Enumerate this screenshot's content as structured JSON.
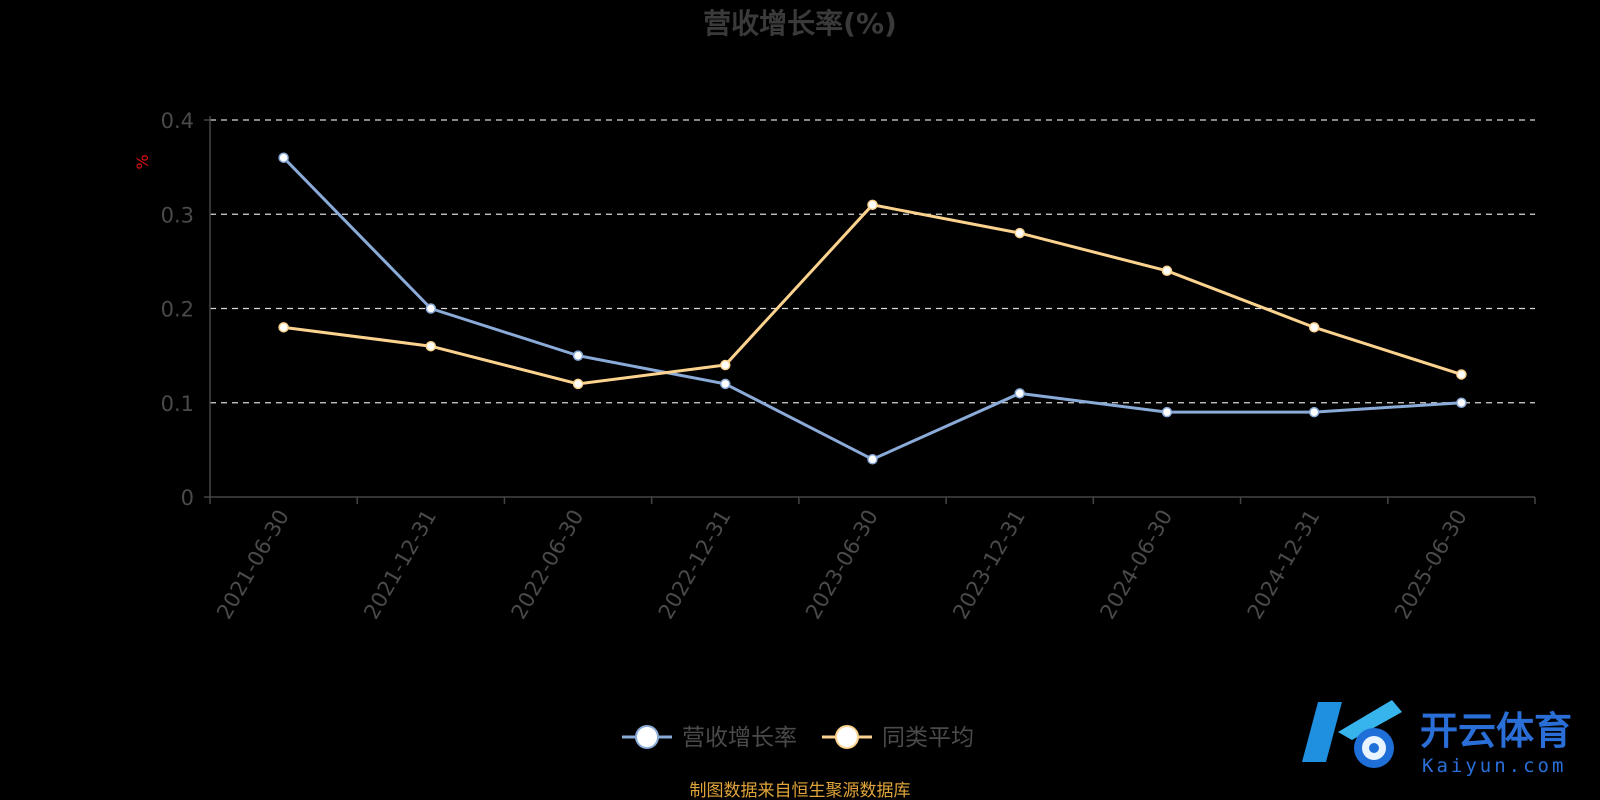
{
  "chart_data": {
    "type": "line",
    "title": "营收增长率(%)",
    "ylabel": "%",
    "ylim": [
      0,
      0.4
    ],
    "yticks": [
      0,
      0.1,
      0.2,
      0.3,
      0.4
    ],
    "ytick_labels": [
      "0",
      "0.1",
      "0.2",
      "0.3",
      "0.4"
    ],
    "grid": true,
    "legend_position": "bottom-center",
    "categories": [
      "2021-06-30",
      "2021-12-31",
      "2022-06-30",
      "2022-12-31",
      "2023-06-30",
      "2023-12-31",
      "2024-06-30",
      "2024-12-31",
      "2025-06-30"
    ],
    "series": [
      {
        "name": "营收增长率",
        "color": "#8aaad8",
        "values": [
          0.36,
          0.2,
          0.15,
          0.12,
          0.04,
          0.11,
          0.09,
          0.09,
          0.1
        ]
      },
      {
        "name": "同类平均",
        "color": "#fbd38f",
        "values": [
          0.18,
          0.16,
          0.12,
          0.14,
          0.31,
          0.28,
          0.24,
          0.18,
          0.13
        ]
      }
    ]
  },
  "source_note": "制图数据来自恒生聚源数据库",
  "watermark": {
    "cn": "开云体育",
    "en": "Kaiyun.com"
  }
}
